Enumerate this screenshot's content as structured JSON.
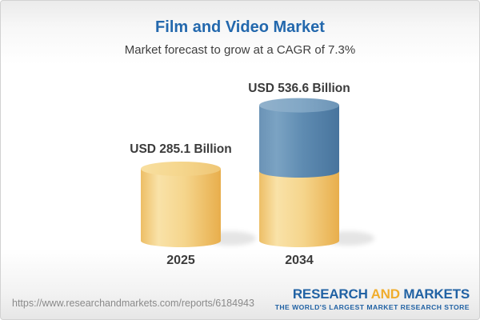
{
  "header": {
    "title": "Film and Video Market",
    "subtitle": "Market forecast to grow at a CAGR of 7.3%"
  },
  "chart_data": {
    "type": "bar",
    "subtype": "3d-cylinder",
    "title": "Film and Video Market",
    "subtitle": "Market forecast to grow at a CAGR of 7.3%",
    "categories": [
      "2025",
      "2034"
    ],
    "values": [
      285.1,
      536.6
    ],
    "value_labels": [
      "USD 285.1 Billion",
      "USD 536.6 Billion"
    ],
    "unit": "USD Billion",
    "cagr_percent": 7.3,
    "grid": false,
    "legend": "none",
    "axes": "none",
    "colors": {
      "base_segment": "#F1C468",
      "growth_segment": "#5E8BB1",
      "title_text": "#2368AD",
      "label_text": "#3B3B3B"
    }
  },
  "footer": {
    "url": "https://www.researchandmarkets.com/reports/6184943",
    "logo": {
      "part_research": "RESEARCH",
      "part_and": "AND",
      "part_markets": "MARKETS",
      "tagline": "THE WORLD'S LARGEST MARKET RESEARCH STORE"
    }
  }
}
